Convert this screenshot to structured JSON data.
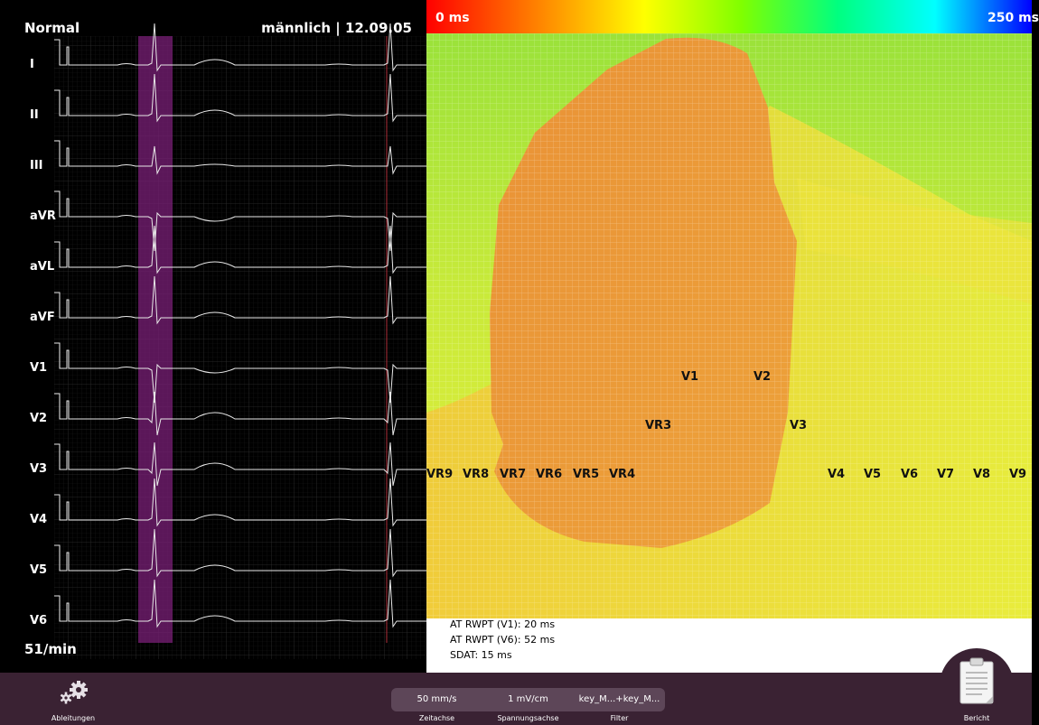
{
  "ecg_panel": {
    "diagnosis": "Normal",
    "patient_info": "männlich | 12.09.05",
    "heart_rate": "51/min",
    "leads": [
      "I",
      "II",
      "III",
      "aVR",
      "aVL",
      "aVF",
      "V1",
      "V2",
      "V3",
      "V4",
      "V5",
      "V6"
    ]
  },
  "activation_map": {
    "scale_min": "0 ms",
    "scale_max": "250 ms",
    "colors": {
      "early": "#e8892a",
      "mid": "#f2e13a",
      "late": "#8fe33a"
    },
    "positions": [
      {
        "label": "V1"
      },
      {
        "label": "V2"
      },
      {
        "label": "VR3"
      },
      {
        "label": "V3"
      },
      {
        "label": "VR9"
      },
      {
        "label": "VR8"
      },
      {
        "label": "VR7"
      },
      {
        "label": "VR6"
      },
      {
        "label": "VR5"
      },
      {
        "label": "VR4"
      },
      {
        "label": "V4"
      },
      {
        "label": "V5"
      },
      {
        "label": "V6"
      },
      {
        "label": "V7"
      },
      {
        "label": "V8"
      },
      {
        "label": "V9"
      }
    ]
  },
  "metrics": {
    "rwpt_v1": "AT RWPT (V1): 20 ms",
    "rwpt_v6": "AT RWPT (V6): 52 ms",
    "sdat": "SDAT: 15 ms"
  },
  "toolbar": {
    "leads_button": "Ableitungen",
    "time_axis_value": "50 mm/s",
    "time_axis_label": "Zeitachse",
    "voltage_axis_value": "1 mV/cm",
    "voltage_axis_label": "Spannungsachse",
    "filter_value": "key_M...+key_M...",
    "filter_label": "Filter",
    "report_button": "Bericht",
    "icons": {
      "leads": "gears-icon",
      "report": "clipboard-icon"
    }
  }
}
